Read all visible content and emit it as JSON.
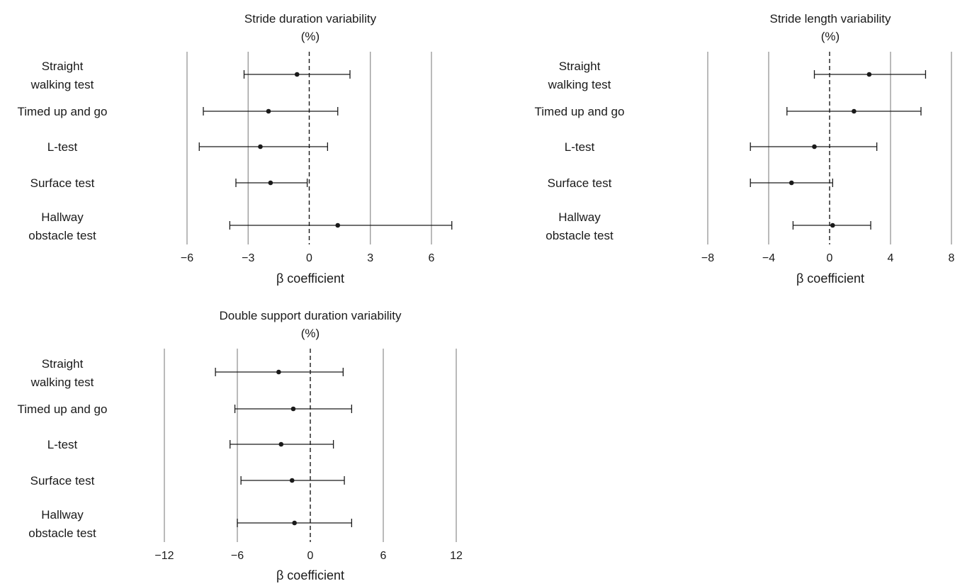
{
  "colors": {
    "grid": "#8c8c8c",
    "ink": "#1a1a1a",
    "background": "#ffffff"
  },
  "chart_data": [
    {
      "type": "scatter",
      "title_lines": [
        "Stride duration variability",
        "(%)"
      ],
      "categories": [
        [
          "Straight",
          "walking test"
        ],
        [
          "Timed up and go"
        ],
        [
          "L-test"
        ],
        [
          "Surface test"
        ],
        [
          "Hallway",
          "obstacle test"
        ]
      ],
      "estimates": [
        -0.6,
        -2.0,
        -2.4,
        -1.9,
        1.4
      ],
      "ci_low": [
        -3.2,
        -5.2,
        -5.4,
        -3.6,
        -3.9
      ],
      "ci_high": [
        2.0,
        1.4,
        0.9,
        -0.1,
        7.0
      ],
      "xticks": [
        -6,
        -3,
        0,
        3,
        6
      ],
      "xtick_labels": [
        "−6",
        "−3",
        "0",
        "3",
        "6"
      ],
      "xlim": [
        -6,
        6
      ],
      "xlabel": "β coefficient",
      "reference_line": 0,
      "grid": true
    },
    {
      "type": "scatter",
      "title_lines": [
        "Stride length variability",
        "(%)"
      ],
      "categories": [
        [
          "Straight",
          "walking test"
        ],
        [
          "Timed up and go"
        ],
        [
          "L-test"
        ],
        [
          "Surface test"
        ],
        [
          "Hallway",
          "obstacle test"
        ]
      ],
      "estimates": [
        2.6,
        1.6,
        -1.0,
        -2.5,
        0.2
      ],
      "ci_low": [
        -1.0,
        -2.8,
        -5.2,
        -5.2,
        -2.4
      ],
      "ci_high": [
        6.3,
        6.0,
        3.1,
        0.2,
        2.7
      ],
      "xticks": [
        -8,
        -4,
        0,
        4,
        8
      ],
      "xtick_labels": [
        "−8",
        "−4",
        "0",
        "4",
        "8"
      ],
      "xlim": [
        -8,
        8
      ],
      "xlabel": "β coefficient",
      "reference_line": 0,
      "grid": true
    },
    {
      "type": "scatter",
      "title_lines": [
        "Double support duration variability",
        "(%)"
      ],
      "categories": [
        [
          "Straight",
          "walking test"
        ],
        [
          "Timed up and go"
        ],
        [
          "L-test"
        ],
        [
          "Surface test"
        ],
        [
          "Hallway",
          "obstacle test"
        ]
      ],
      "estimates": [
        -2.6,
        -1.4,
        -2.4,
        -1.5,
        -1.3
      ],
      "ci_low": [
        -7.8,
        -6.2,
        -6.6,
        -5.7,
        -6.0
      ],
      "ci_high": [
        2.7,
        3.4,
        1.9,
        2.8,
        3.4
      ],
      "xticks": [
        -12,
        -6,
        0,
        6,
        12
      ],
      "xtick_labels": [
        "−12",
        "−6",
        "0",
        "6",
        "12"
      ],
      "xlim": [
        -12,
        12
      ],
      "xlabel": "β coefficient",
      "reference_line": 0,
      "grid": true
    }
  ]
}
